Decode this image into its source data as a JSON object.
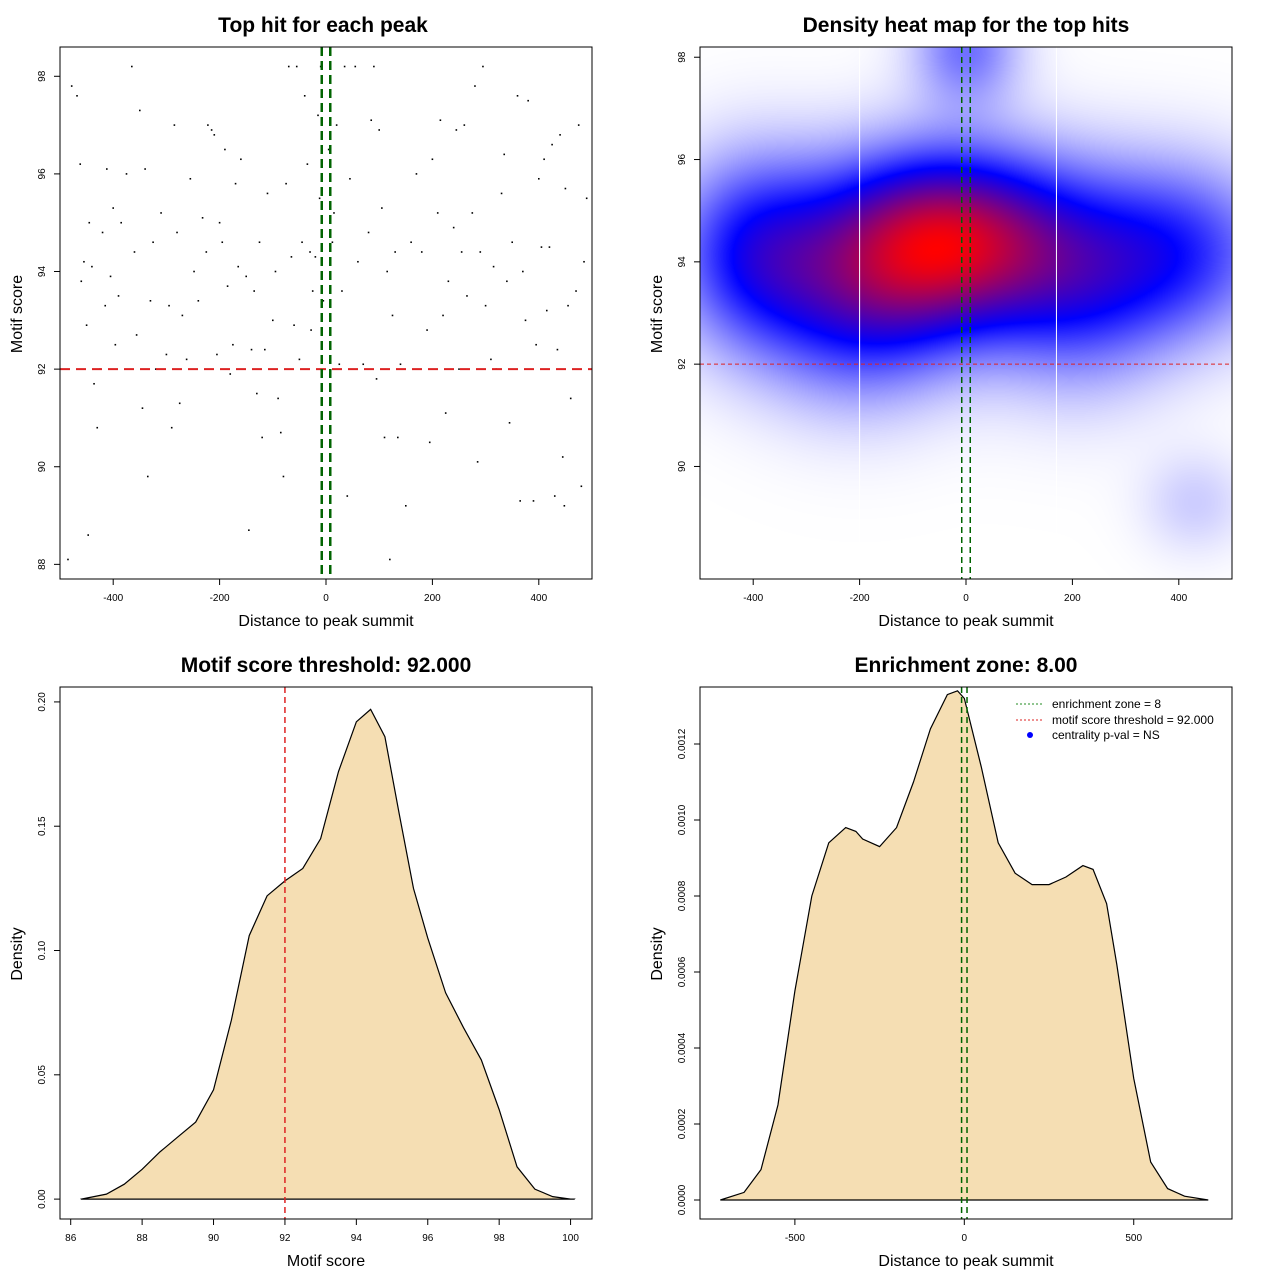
{
  "colors": {
    "threshold_red": "#dd2222",
    "zone_green": "#006400",
    "density_fill": "#f5deb3",
    "heat_low": "#ffffff",
    "heat_mid": "#0000ff",
    "heat_high": "#ff0000",
    "centrality_blue": "#0000ff"
  },
  "chart_data": [
    {
      "id": "scatter",
      "type": "scatter",
      "title": "Top hit for each peak",
      "xlabel": "Distance to peak summit",
      "ylabel": "Motif score",
      "xlim": [
        -500,
        500
      ],
      "ylim": [
        87.7,
        98.6
      ],
      "xticks": [
        -400,
        -200,
        0,
        200,
        400
      ],
      "yticks": [
        88,
        90,
        92,
        94,
        96,
        98
      ],
      "threshold_y": 92,
      "zone_x": [
        -8,
        8
      ],
      "points": [
        [
          -485,
          88.1
        ],
        [
          -478,
          97.8
        ],
        [
          -468,
          97.6
        ],
        [
          -462,
          96.2
        ],
        [
          -460,
          93.8
        ],
        [
          -455,
          94.2
        ],
        [
          -450,
          92.9
        ],
        [
          -447,
          88.6
        ],
        [
          -445,
          95.0
        ],
        [
          -440,
          94.1
        ],
        [
          -436,
          91.7
        ],
        [
          -430,
          90.8
        ],
        [
          -425,
          92.0
        ],
        [
          -420,
          94.8
        ],
        [
          -415,
          93.3
        ],
        [
          -412,
          96.1
        ],
        [
          -405,
          93.9
        ],
        [
          -400,
          95.3
        ],
        [
          -396,
          92.5
        ],
        [
          -390,
          93.5
        ],
        [
          -385,
          95.0
        ],
        [
          -375,
          96.0
        ],
        [
          -365,
          98.2
        ],
        [
          -360,
          94.4
        ],
        [
          -356,
          92.7
        ],
        [
          -350,
          97.3
        ],
        [
          -345,
          91.2
        ],
        [
          -340,
          96.1
        ],
        [
          -335,
          89.8
        ],
        [
          -330,
          93.4
        ],
        [
          -325,
          94.6
        ],
        [
          -320,
          92.0
        ],
        [
          -310,
          95.2
        ],
        [
          -300,
          92.3
        ],
        [
          -295,
          93.3
        ],
        [
          -290,
          90.8
        ],
        [
          -285,
          97.0
        ],
        [
          -280,
          94.8
        ],
        [
          -275,
          91.3
        ],
        [
          -270,
          93.1
        ],
        [
          -262,
          92.2
        ],
        [
          -255,
          95.9
        ],
        [
          -248,
          94.0
        ],
        [
          -240,
          93.4
        ],
        [
          -232,
          95.1
        ],
        [
          -225,
          94.4
        ],
        [
          -222,
          97.0
        ],
        [
          -215,
          96.9
        ],
        [
          -210,
          96.8
        ],
        [
          -205,
          92.3
        ],
        [
          -200,
          95.0
        ],
        [
          -195,
          94.6
        ],
        [
          -190,
          96.5
        ],
        [
          -185,
          93.7
        ],
        [
          -180,
          91.9
        ],
        [
          -175,
          92.5
        ],
        [
          -170,
          95.8
        ],
        [
          -165,
          94.1
        ],
        [
          -160,
          96.3
        ],
        [
          -150,
          93.9
        ],
        [
          -145,
          88.7
        ],
        [
          -140,
          92.4
        ],
        [
          -135,
          93.6
        ],
        [
          -130,
          91.5
        ],
        [
          -125,
          94.6
        ],
        [
          -120,
          90.6
        ],
        [
          -115,
          92.4
        ],
        [
          -110,
          95.6
        ],
        [
          -100,
          93.0
        ],
        [
          -95,
          94.0
        ],
        [
          -90,
          91.4
        ],
        [
          -85,
          90.7
        ],
        [
          -80,
          89.8
        ],
        [
          -75,
          95.8
        ],
        [
          -70,
          98.2
        ],
        [
          -65,
          94.3
        ],
        [
          -60,
          92.9
        ],
        [
          -55,
          98.2
        ],
        [
          -50,
          92.2
        ],
        [
          -45,
          94.6
        ],
        [
          -40,
          97.6
        ],
        [
          -35,
          96.2
        ],
        [
          -30,
          94.4
        ],
        [
          -28,
          92.8
        ],
        [
          -25,
          93.6
        ],
        [
          -20,
          94.3
        ],
        [
          -15,
          97.2
        ],
        [
          -12,
          95.5
        ],
        [
          -10,
          98.2
        ],
        [
          -5,
          93.4
        ],
        [
          5,
          96.5
        ],
        [
          8,
          91.9
        ],
        [
          12,
          94.6
        ],
        [
          15,
          95.2
        ],
        [
          20,
          97.0
        ],
        [
          25,
          92.1
        ],
        [
          30,
          93.6
        ],
        [
          35,
          98.2
        ],
        [
          40,
          89.4
        ],
        [
          45,
          95.9
        ],
        [
          55,
          98.2
        ],
        [
          60,
          94.2
        ],
        [
          70,
          92.1
        ],
        [
          80,
          94.8
        ],
        [
          85,
          97.1
        ],
        [
          90,
          98.2
        ],
        [
          95,
          91.8
        ],
        [
          100,
          96.9
        ],
        [
          105,
          95.3
        ],
        [
          110,
          90.6
        ],
        [
          115,
          94.0
        ],
        [
          120,
          88.1
        ],
        [
          125,
          93.1
        ],
        [
          130,
          94.4
        ],
        [
          135,
          90.6
        ],
        [
          140,
          92.1
        ],
        [
          150,
          89.2
        ],
        [
          160,
          94.6
        ],
        [
          170,
          96.0
        ],
        [
          180,
          94.4
        ],
        [
          190,
          92.8
        ],
        [
          195,
          90.5
        ],
        [
          200,
          96.3
        ],
        [
          210,
          95.2
        ],
        [
          215,
          97.1
        ],
        [
          220,
          93.1
        ],
        [
          225,
          91.1
        ],
        [
          230,
          93.8
        ],
        [
          240,
          94.9
        ],
        [
          245,
          96.9
        ],
        [
          250,
          92.0
        ],
        [
          255,
          94.4
        ],
        [
          260,
          97.0
        ],
        [
          265,
          93.5
        ],
        [
          275,
          95.2
        ],
        [
          280,
          97.8
        ],
        [
          285,
          90.1
        ],
        [
          290,
          94.4
        ],
        [
          295,
          98.2
        ],
        [
          300,
          93.3
        ],
        [
          310,
          92.2
        ],
        [
          315,
          94.1
        ],
        [
          320,
          92.0
        ],
        [
          330,
          95.6
        ],
        [
          335,
          96.4
        ],
        [
          340,
          93.8
        ],
        [
          345,
          90.9
        ],
        [
          350,
          94.6
        ],
        [
          360,
          97.6
        ],
        [
          365,
          89.3
        ],
        [
          370,
          94.0
        ],
        [
          375,
          93.0
        ],
        [
          380,
          97.5
        ],
        [
          390,
          89.3
        ],
        [
          395,
          92.5
        ],
        [
          400,
          95.9
        ],
        [
          405,
          94.5
        ],
        [
          410,
          96.3
        ],
        [
          415,
          93.2
        ],
        [
          420,
          94.5
        ],
        [
          425,
          96.6
        ],
        [
          430,
          89.4
        ],
        [
          435,
          92.4
        ],
        [
          440,
          96.8
        ],
        [
          445,
          90.2
        ],
        [
          448,
          89.2
        ],
        [
          450,
          95.7
        ],
        [
          455,
          93.3
        ],
        [
          460,
          91.4
        ],
        [
          470,
          93.6
        ],
        [
          475,
          97.0
        ],
        [
          480,
          89.6
        ],
        [
          485,
          94.2
        ],
        [
          490,
          95.5
        ]
      ]
    },
    {
      "id": "heatmap",
      "type": "heatmap",
      "title": "Density heat map for the top hits",
      "xlabel": "Distance to peak summit",
      "ylabel": "Motif score",
      "xlim": [
        -500,
        500
      ],
      "ylim": [
        87.8,
        98.2
      ],
      "xticks": [
        -400,
        -200,
        0,
        200,
        400
      ],
      "yticks": [
        90,
        92,
        94,
        96,
        98
      ],
      "threshold_y": 92,
      "zone_x": [
        -8,
        8
      ],
      "white_lines_x": [
        -200,
        170
      ],
      "density_components": [
        {
          "x": -40,
          "y": 94.4,
          "sx": 160,
          "sy": 1.2,
          "w": 1.0
        },
        {
          "x": 0,
          "y": 98.2,
          "sx": 70,
          "sy": 0.8,
          "w": 0.28
        },
        {
          "x": -400,
          "y": 94.2,
          "sx": 110,
          "sy": 1.3,
          "w": 0.45
        },
        {
          "x": 400,
          "y": 94.2,
          "sx": 130,
          "sy": 1.2,
          "w": 0.4
        },
        {
          "x": 210,
          "y": 93.5,
          "sx": 120,
          "sy": 1.4,
          "w": 0.32
        },
        {
          "x": -200,
          "y": 93.0,
          "sx": 130,
          "sy": 1.3,
          "w": 0.35
        },
        {
          "x": 430,
          "y": 89.3,
          "sx": 70,
          "sy": 0.7,
          "w": 0.1
        }
      ]
    },
    {
      "id": "score-density",
      "type": "area",
      "title": "Motif score threshold: 92.000",
      "xlabel": "Motif score",
      "ylabel": "Density",
      "xlim": [
        85.7,
        100.6
      ],
      "ylim": [
        -0.008,
        0.206
      ],
      "xticks": [
        86,
        88,
        90,
        92,
        94,
        96,
        98,
        100
      ],
      "yticks": [
        0.0,
        0.05,
        0.1,
        0.15,
        0.2
      ],
      "ytick_labels": [
        "0.00",
        "0.05",
        "0.10",
        "0.15",
        "0.20"
      ],
      "threshold_x": 92,
      "x": [
        86.3,
        87.0,
        87.5,
        88.0,
        88.5,
        89.0,
        89.5,
        90.0,
        90.5,
        91.0,
        91.5,
        92.0,
        92.5,
        93.0,
        93.5,
        94.0,
        94.4,
        94.8,
        95.2,
        95.6,
        96.0,
        96.5,
        97.0,
        97.5,
        98.0,
        98.5,
        99.0,
        99.5,
        100.0,
        100.1
      ],
      "y": [
        0.0,
        0.002,
        0.006,
        0.012,
        0.019,
        0.025,
        0.031,
        0.044,
        0.072,
        0.106,
        0.122,
        0.128,
        0.133,
        0.145,
        0.172,
        0.192,
        0.197,
        0.186,
        0.155,
        0.125,
        0.105,
        0.083,
        0.069,
        0.056,
        0.036,
        0.013,
        0.004,
        0.001,
        0.0,
        0.0
      ]
    },
    {
      "id": "distance-density",
      "type": "area",
      "title": "Enrichment zone: 8.00",
      "xlabel": "Distance to peak summit",
      "ylabel": "Density",
      "xlim": [
        -780,
        790
      ],
      "ylim": [
        -5e-05,
        0.00135
      ],
      "xticks": [
        -500,
        0,
        500
      ],
      "yticks": [
        0.0,
        0.0002,
        0.0004,
        0.0006,
        0.0008,
        0.001,
        0.0012
      ],
      "ytick_labels": [
        "0.0000",
        "0.0002",
        "0.0004",
        "0.0006",
        "0.0008",
        "0.0010",
        "0.0012"
      ],
      "zone_x": [
        -8,
        8
      ],
      "x": [
        -720,
        -650,
        -600,
        -550,
        -500,
        -450,
        -400,
        -350,
        -320,
        -300,
        -250,
        -200,
        -150,
        -100,
        -50,
        -20,
        0,
        50,
        100,
        150,
        200,
        250,
        300,
        350,
        380,
        420,
        450,
        500,
        550,
        600,
        650,
        720
      ],
      "y": [
        0.0,
        2e-05,
        8e-05,
        0.00025,
        0.00055,
        0.0008,
        0.00094,
        0.00098,
        0.00097,
        0.00095,
        0.00093,
        0.00098,
        0.0011,
        0.00124,
        0.00133,
        0.00134,
        0.00132,
        0.00114,
        0.00094,
        0.00086,
        0.00083,
        0.00083,
        0.00085,
        0.00088,
        0.00087,
        0.00078,
        0.00062,
        0.00032,
        0.0001,
        3e-05,
        1e-05,
        0.0
      ],
      "legend": [
        {
          "label": "enrichment zone = 8",
          "kind": "dotted-line",
          "color": "#228b22"
        },
        {
          "label": "motif score threshold = 92.000",
          "kind": "dotted-line",
          "color": "#dd2222"
        },
        {
          "label": "centrality p-val = NS",
          "kind": "dot",
          "color": "#0000ff"
        }
      ]
    }
  ]
}
